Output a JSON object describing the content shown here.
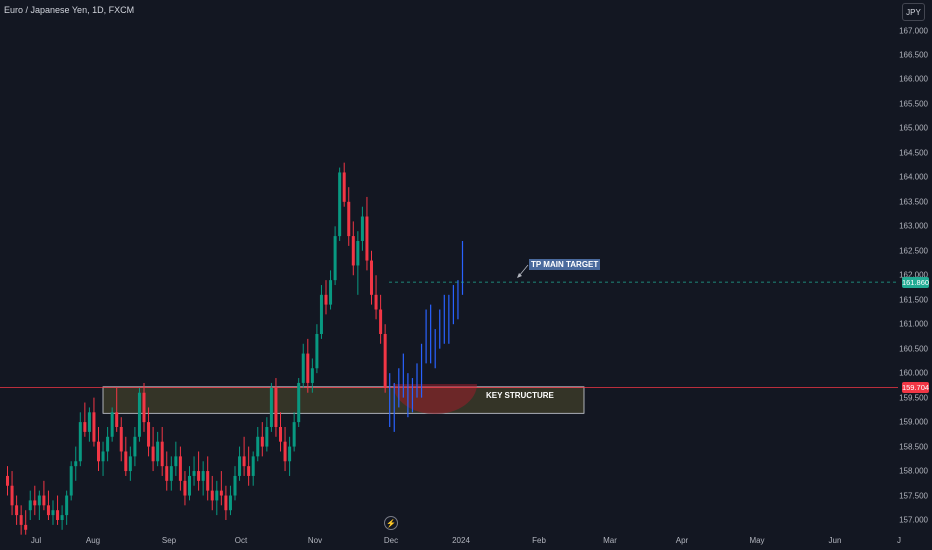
{
  "header": {
    "title": "Euro / Japanese Yen, 1D, FXCM",
    "currency_button": "JPY"
  },
  "price_axis": {
    "ticks": [
      "167.000",
      "166.500",
      "166.000",
      "165.500",
      "165.000",
      "164.500",
      "164.000",
      "163.500",
      "163.000",
      "162.500",
      "162.000",
      "161.500",
      "161.000",
      "160.500",
      "160.000",
      "159.500",
      "159.000",
      "158.500",
      "158.000",
      "157.500",
      "157.000"
    ],
    "values": [
      167.0,
      166.5,
      166.0,
      165.5,
      165.0,
      164.5,
      164.0,
      163.5,
      163.0,
      162.5,
      162.0,
      161.5,
      161.0,
      160.5,
      160.0,
      159.5,
      159.0,
      158.5,
      158.0,
      157.5,
      157.0
    ]
  },
  "time_axis": {
    "labels": [
      "Jul",
      "Aug",
      "Sep",
      "Oct",
      "Nov",
      "Dec",
      "2024",
      "Feb",
      "Mar",
      "Apr",
      "May",
      "Jun",
      "J"
    ]
  },
  "current_price": {
    "label": "159.704",
    "value": 159.704,
    "color": "#f23645"
  },
  "target_price": {
    "label": "161.860",
    "value": 161.86,
    "color": "#22ab94"
  },
  "annotations": {
    "key_structure": "KEY STRUCTURE",
    "tp_target": "TP MAIN TARGET"
  },
  "colors": {
    "up": "#089981",
    "down": "#f23645",
    "projection": "#2962ff",
    "background": "#131722"
  },
  "chart_data": {
    "type": "candlestick",
    "symbol": "EUR/JPY",
    "timeframe": "1D",
    "ylim": [
      156.7,
      167.5
    ],
    "key_structure_zone": [
      159.2,
      159.7
    ],
    "tp_main_target": 161.86,
    "last_price": 159.704,
    "candles": [
      [
        157.9,
        158.1,
        157.5,
        157.7
      ],
      [
        157.7,
        158.0,
        157.1,
        157.3
      ],
      [
        157.3,
        157.5,
        156.9,
        157.1
      ],
      [
        157.1,
        157.3,
        156.7,
        156.9
      ],
      [
        156.9,
        157.2,
        156.7,
        156.8
      ],
      [
        157.2,
        157.6,
        157.0,
        157.4
      ],
      [
        157.4,
        157.7,
        157.1,
        157.3
      ],
      [
        157.3,
        157.6,
        157.0,
        157.5
      ],
      [
        157.5,
        157.8,
        157.2,
        157.3
      ],
      [
        157.3,
        157.6,
        157.0,
        157.1
      ],
      [
        157.1,
        157.4,
        156.9,
        157.2
      ],
      [
        157.2,
        157.5,
        156.9,
        157.0
      ],
      [
        157.0,
        157.3,
        156.8,
        157.1
      ],
      [
        157.1,
        157.6,
        156.9,
        157.5
      ],
      [
        157.5,
        158.2,
        157.4,
        158.1
      ],
      [
        158.1,
        158.5,
        157.8,
        158.2
      ],
      [
        158.2,
        159.2,
        158.1,
        159.0
      ],
      [
        159.0,
        159.4,
        158.7,
        158.8
      ],
      [
        158.8,
        159.3,
        158.6,
        159.2
      ],
      [
        159.2,
        159.5,
        158.5,
        158.6
      ],
      [
        158.6,
        158.9,
        158.0,
        158.2
      ],
      [
        158.2,
        158.6,
        157.9,
        158.4
      ],
      [
        158.4,
        158.9,
        158.2,
        158.7
      ],
      [
        158.7,
        159.3,
        158.6,
        159.2
      ],
      [
        159.2,
        159.7,
        158.8,
        158.9
      ],
      [
        158.9,
        159.1,
        158.2,
        158.4
      ],
      [
        158.4,
        158.7,
        157.9,
        158.0
      ],
      [
        158.0,
        158.5,
        157.8,
        158.3
      ],
      [
        158.3,
        158.9,
        158.1,
        158.7
      ],
      [
        158.7,
        159.7,
        158.6,
        159.6
      ],
      [
        159.6,
        159.8,
        158.8,
        159.0
      ],
      [
        159.0,
        159.3,
        158.3,
        158.5
      ],
      [
        158.5,
        158.9,
        158.0,
        158.2
      ],
      [
        158.2,
        158.8,
        158.1,
        158.6
      ],
      [
        158.6,
        158.9,
        157.9,
        158.1
      ],
      [
        158.1,
        158.4,
        157.6,
        157.8
      ],
      [
        157.8,
        158.3,
        157.6,
        158.1
      ],
      [
        158.1,
        158.6,
        157.9,
        158.3
      ],
      [
        158.3,
        158.5,
        157.6,
        157.8
      ],
      [
        157.8,
        158.0,
        157.3,
        157.5
      ],
      [
        157.5,
        158.1,
        157.4,
        157.9
      ],
      [
        157.9,
        158.3,
        157.7,
        158.0
      ],
      [
        158.0,
        158.4,
        157.6,
        157.8
      ],
      [
        157.8,
        158.2,
        157.5,
        158.0
      ],
      [
        158.0,
        158.3,
        157.4,
        157.6
      ],
      [
        157.6,
        157.9,
        157.2,
        157.4
      ],
      [
        157.4,
        157.8,
        157.1,
        157.6
      ],
      [
        157.6,
        158.0,
        157.3,
        157.5
      ],
      [
        157.5,
        157.7,
        157.0,
        157.2
      ],
      [
        157.2,
        157.7,
        157.1,
        157.5
      ],
      [
        157.5,
        158.1,
        157.4,
        157.9
      ],
      [
        157.9,
        158.5,
        157.8,
        158.3
      ],
      [
        158.3,
        158.7,
        157.9,
        158.1
      ],
      [
        158.1,
        158.5,
        157.7,
        157.9
      ],
      [
        157.9,
        158.4,
        157.7,
        158.3
      ],
      [
        158.3,
        158.9,
        158.2,
        158.7
      ],
      [
        158.7,
        159.0,
        158.3,
        158.5
      ],
      [
        158.5,
        159.1,
        158.4,
        158.9
      ],
      [
        158.9,
        159.8,
        158.8,
        159.7
      ],
      [
        159.7,
        159.9,
        158.7,
        158.9
      ],
      [
        158.9,
        159.2,
        158.4,
        158.6
      ],
      [
        158.6,
        158.9,
        158.0,
        158.2
      ],
      [
        158.2,
        158.7,
        157.9,
        158.5
      ],
      [
        158.5,
        159.2,
        158.4,
        159.0
      ],
      [
        159.0,
        159.9,
        158.9,
        159.8
      ],
      [
        159.8,
        160.6,
        159.7,
        160.4
      ],
      [
        160.4,
        160.7,
        159.6,
        159.8
      ],
      [
        159.8,
        160.3,
        159.6,
        160.1
      ],
      [
        160.1,
        161.0,
        160.0,
        160.8
      ],
      [
        160.8,
        161.8,
        160.7,
        161.6
      ],
      [
        161.6,
        161.9,
        161.2,
        161.4
      ],
      [
        161.4,
        162.1,
        161.3,
        161.9
      ],
      [
        161.9,
        163.0,
        161.8,
        162.8
      ],
      [
        162.8,
        164.2,
        162.7,
        164.1
      ],
      [
        164.1,
        164.3,
        163.4,
        163.5
      ],
      [
        163.5,
        163.8,
        162.6,
        162.8
      ],
      [
        162.8,
        163.1,
        162.0,
        162.2
      ],
      [
        162.2,
        162.9,
        161.6,
        162.7
      ],
      [
        162.7,
        163.4,
        162.5,
        163.2
      ],
      [
        163.2,
        163.6,
        162.1,
        162.3
      ],
      [
        162.3,
        162.5,
        161.4,
        161.6
      ],
      [
        161.6,
        162.0,
        161.1,
        161.3
      ],
      [
        161.3,
        161.6,
        160.6,
        160.8
      ],
      [
        160.8,
        161.0,
        159.6,
        159.7
      ]
    ],
    "projection": [
      [
        159.7,
        160.0,
        158.9,
        159.1
      ],
      [
        159.1,
        159.8,
        158.8,
        159.6
      ],
      [
        159.6,
        160.1,
        159.3,
        159.9
      ],
      [
        159.9,
        160.4,
        159.5,
        159.7
      ],
      [
        159.7,
        160.0,
        159.1,
        159.3
      ],
      [
        159.3,
        159.9,
        159.2,
        159.8
      ],
      [
        159.8,
        160.2,
        159.5,
        159.6
      ],
      [
        159.6,
        160.6,
        159.5,
        160.4
      ],
      [
        160.4,
        161.3,
        160.2,
        161.0
      ],
      [
        161.0,
        161.4,
        160.2,
        160.4
      ],
      [
        160.4,
        160.9,
        160.1,
        160.7
      ],
      [
        160.7,
        161.3,
        160.5,
        161.1
      ],
      [
        161.1,
        161.6,
        160.6,
        160.8
      ],
      [
        160.8,
        161.6,
        160.6,
        161.4
      ],
      [
        161.4,
        161.8,
        161.0,
        161.2
      ],
      [
        161.2,
        161.9,
        161.1,
        161.7
      ],
      [
        161.7,
        162.7,
        161.6,
        162.5
      ]
    ]
  }
}
